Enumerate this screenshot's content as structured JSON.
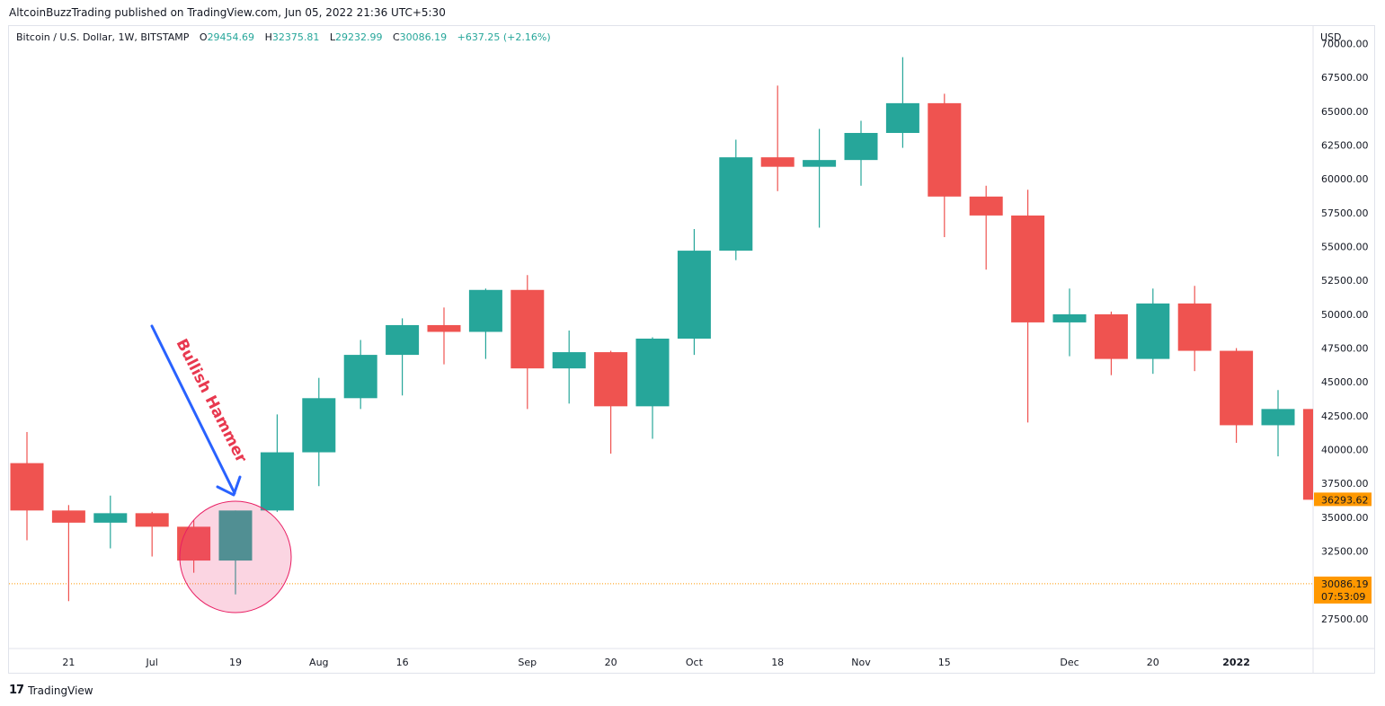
{
  "header": {
    "published": "AltcoinBuzzTrading published on TradingView.com, Jun 05, 2022 21:36 UTC+5:30"
  },
  "legend": {
    "symbol": "Bitcoin / U.S. Dollar, 1W, BITSTAMP",
    "open_label": "O",
    "open": "29454.69",
    "high_label": "H",
    "high": "32375.81",
    "low_label": "L",
    "low": "29232.99",
    "close_label": "C",
    "close": "30086.19",
    "change": "+637.25 (+2.16%)"
  },
  "currency": "USD",
  "branding": {
    "logo": "17",
    "name": "TradingView"
  },
  "colors": {
    "up": "#26a69a",
    "down": "#ef5350",
    "price_tag": "#ff9800",
    "arrow": "#2962ff",
    "annotation": "#e8384f"
  },
  "chart_data": {
    "type": "candlestick",
    "title": "Bitcoin / U.S. Dollar, 1W, BITSTAMP",
    "ylim": [
      25300,
      71300
    ],
    "y_ticks": [
      "70000.00",
      "67500.00",
      "65000.00",
      "62500.00",
      "60000.00",
      "57500.00",
      "55000.00",
      "52500.00",
      "50000.00",
      "47500.00",
      "45000.00",
      "42500.00",
      "40000.00",
      "37500.00",
      "35000.00",
      "32500.00",
      "27500.00"
    ],
    "x_ticks": [
      {
        "label": "21",
        "index": 1
      },
      {
        "label": "Jul",
        "index": 3
      },
      {
        "label": "19",
        "index": 5
      },
      {
        "label": "Aug",
        "index": 7
      },
      {
        "label": "16",
        "index": 9
      },
      {
        "label": "Sep",
        "index": 12
      },
      {
        "label": "20",
        "index": 14
      },
      {
        "label": "Oct",
        "index": 16
      },
      {
        "label": "18",
        "index": 18
      },
      {
        "label": "Nov",
        "index": 20
      },
      {
        "label": "15",
        "index": 22
      },
      {
        "label": "Dec",
        "index": 25
      },
      {
        "label": "20",
        "index": 27
      },
      {
        "label": "2022",
        "index": 29
      }
    ],
    "candles": [
      {
        "o": 39000,
        "h": 41300,
        "l": 33300,
        "c": 35500
      },
      {
        "o": 35500,
        "h": 35900,
        "l": 28800,
        "c": 34600
      },
      {
        "o": 34600,
        "h": 36600,
        "l": 32700,
        "c": 35300
      },
      {
        "o": 35300,
        "h": 35400,
        "l": 32100,
        "c": 34300
      },
      {
        "o": 34300,
        "h": 34800,
        "l": 30900,
        "c": 31800
      },
      {
        "o": 31800,
        "h": 35500,
        "l": 29300,
        "c": 35500
      },
      {
        "o": 35500,
        "h": 42600,
        "l": 35400,
        "c": 39800
      },
      {
        "o": 39800,
        "h": 45300,
        "l": 37300,
        "c": 43800
      },
      {
        "o": 43800,
        "h": 48100,
        "l": 43000,
        "c": 47000
      },
      {
        "o": 47000,
        "h": 49700,
        "l": 44000,
        "c": 49200
      },
      {
        "o": 49200,
        "h": 50500,
        "l": 46300,
        "c": 48700
      },
      {
        "o": 48700,
        "h": 51900,
        "l": 46700,
        "c": 51800
      },
      {
        "o": 51800,
        "h": 52900,
        "l": 43000,
        "c": 46000
      },
      {
        "o": 46000,
        "h": 48800,
        "l": 43400,
        "c": 47200
      },
      {
        "o": 47200,
        "h": 47300,
        "l": 39700,
        "c": 43200
      },
      {
        "o": 43200,
        "h": 48300,
        "l": 40800,
        "c": 48200
      },
      {
        "o": 48200,
        "h": 56300,
        "l": 47000,
        "c": 54700
      },
      {
        "o": 54700,
        "h": 62900,
        "l": 54000,
        "c": 61600
      },
      {
        "o": 61600,
        "h": 66900,
        "l": 59100,
        "c": 60900
      },
      {
        "o": 60900,
        "h": 63700,
        "l": 56400,
        "c": 61400
      },
      {
        "o": 61400,
        "h": 64300,
        "l": 59500,
        "c": 63400
      },
      {
        "o": 63400,
        "h": 69000,
        "l": 62300,
        "c": 65600
      },
      {
        "o": 65600,
        "h": 66300,
        "l": 55700,
        "c": 58700
      },
      {
        "o": 58700,
        "h": 59500,
        "l": 53300,
        "c": 57300
      },
      {
        "o": 57300,
        "h": 59200,
        "l": 42000,
        "c": 49400
      },
      {
        "o": 49400,
        "h": 51900,
        "l": 46900,
        "c": 50000
      },
      {
        "o": 50000,
        "h": 50200,
        "l": 45500,
        "c": 46700
      },
      {
        "o": 46700,
        "h": 51900,
        "l": 45600,
        "c": 50800
      },
      {
        "o": 50800,
        "h": 52100,
        "l": 45800,
        "c": 47300
      },
      {
        "o": 47300,
        "h": 47500,
        "l": 40500,
        "c": 41800
      },
      {
        "o": 41800,
        "h": 44400,
        "l": 39500,
        "c": 43000
      },
      {
        "o": 43000,
        "h": 43000,
        "l": 36293.62,
        "c": 36293.62
      }
    ],
    "price_tags": [
      {
        "label": "36293.62",
        "value": 36293.62
      },
      {
        "label": "30086.19",
        "value": 30086.19,
        "sub": "07:53:09"
      }
    ],
    "current_price_line": 30086.19,
    "annotation": {
      "text": "Bullish Hammer",
      "candle_index": 5
    }
  }
}
